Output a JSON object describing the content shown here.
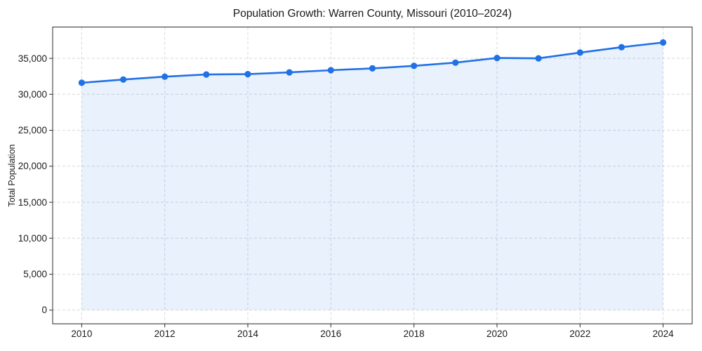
{
  "chart_data": {
    "type": "line",
    "title": "Population Growth: Warren County, Missouri (2010–2024)",
    "xlabel": "",
    "ylabel": "Total Population",
    "x": [
      2010,
      2011,
      2012,
      2013,
      2014,
      2015,
      2016,
      2017,
      2018,
      2019,
      2020,
      2021,
      2022,
      2023,
      2024
    ],
    "series": [
      {
        "name": "Total Population",
        "values": [
          31600,
          32050,
          32450,
          32750,
          32800,
          33050,
          33350,
          33600,
          33950,
          34400,
          35050,
          35000,
          35800,
          36550,
          37200
        ]
      }
    ],
    "xlim": [
      2009.3,
      2024.7
    ],
    "ylim": [
      -1900,
      39350
    ],
    "xticks": {
      "values": [
        2010,
        2012,
        2014,
        2016,
        2018,
        2020,
        2022,
        2024
      ],
      "labels": [
        "2010",
        "2012",
        "2014",
        "2016",
        "2018",
        "2020",
        "2022",
        "2024"
      ]
    },
    "yticks": {
      "values": [
        0,
        5000,
        10000,
        15000,
        20000,
        25000,
        30000,
        35000
      ],
      "labels": [
        "0",
        "5,000",
        "10,000",
        "15,000",
        "20,000",
        "25,000",
        "30,000",
        "35,000"
      ]
    },
    "grid": true,
    "grid_style": "dashed",
    "legend": "none",
    "area_fill": true,
    "fill_baseline": 0,
    "marker": "circle",
    "colors": {
      "line": "#2171e5",
      "fill": "rgba(33, 113, 229, 0.10)",
      "grid": "#d7d9de",
      "spine": "#2b2b2b",
      "text": "#1a1a1a",
      "background": "#ffffff"
    }
  }
}
